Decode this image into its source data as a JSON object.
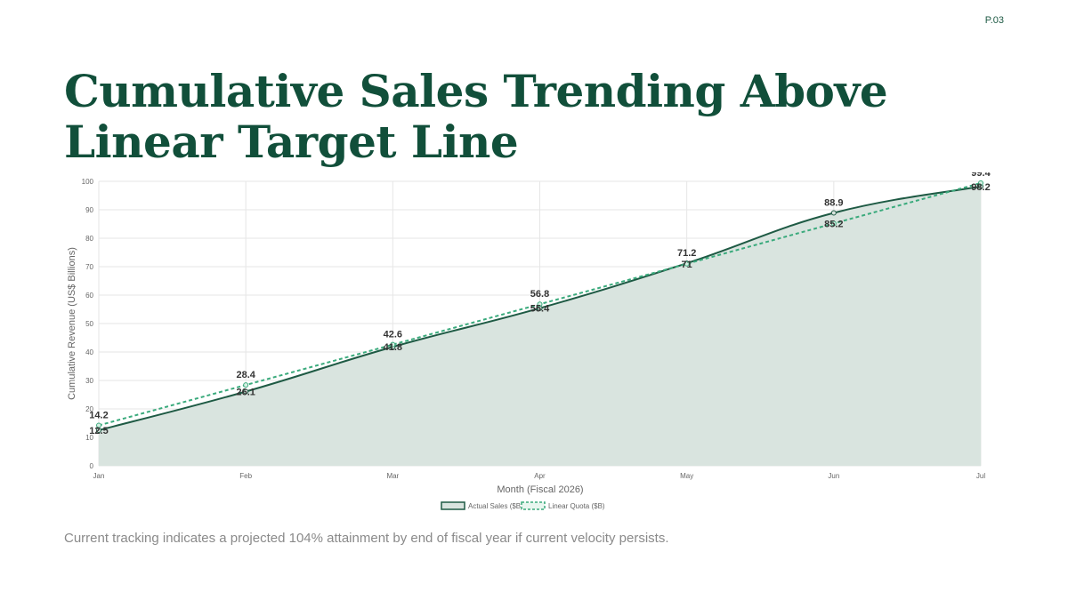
{
  "page": {
    "number": "P.03",
    "title": "Cumulative Sales Trending Above Linear Target Line",
    "caption": "Current tracking indicates a projected 104% attainment by end of fiscal year if current velocity persists."
  },
  "colors": {
    "title": "#114f3a",
    "actual_line": "#1e5a44",
    "actual_fill": "#d9e4df",
    "quota_line": "#3aaa7c"
  },
  "chart_data": {
    "type": "line",
    "categories": [
      "Jan",
      "Feb",
      "Mar",
      "Apr",
      "May",
      "Jun",
      "Jul"
    ],
    "series": [
      {
        "name": "Actual Sales ($B)",
        "values": [
          12.5,
          26.1,
          41.8,
          55.4,
          71.2,
          88.9,
          98.2
        ],
        "style": "solid",
        "fill": true
      },
      {
        "name": "Linear Quota ($B)",
        "values": [
          14.2,
          28.4,
          42.6,
          56.8,
          71.0,
          85.2,
          99.4
        ],
        "style": "dashed",
        "fill": false
      }
    ],
    "xlabel": "Month (Fiscal 2026)",
    "ylabel": "Cumulative Revenue (US$ Billions)",
    "ylim": [
      0,
      100
    ],
    "yticks": [
      0,
      10,
      20,
      30,
      40,
      50,
      60,
      70,
      80,
      90,
      100
    ],
    "grid": true,
    "legend_position": "bottom"
  }
}
